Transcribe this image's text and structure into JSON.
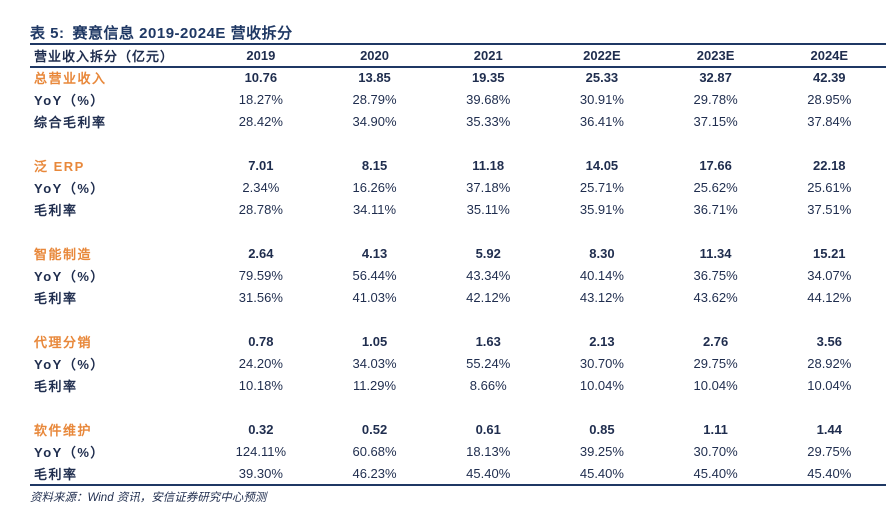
{
  "title": {
    "label": "表 5:",
    "text": "赛意信息 2019-2024E 营收拆分"
  },
  "header": [
    "营业收入拆分（亿元）",
    "2019",
    "2020",
    "2021",
    "2022E",
    "2023E",
    "2024E"
  ],
  "groups": [
    {
      "rows": [
        {
          "name": "总营业收入",
          "values": [
            "10.76",
            "13.85",
            "19.35",
            "25.33",
            "32.87",
            "42.39"
          ]
        },
        {
          "name": "YoY（%）",
          "values": [
            "18.27%",
            "28.79%",
            "39.68%",
            "30.91%",
            "29.78%",
            "28.95%"
          ]
        },
        {
          "name": "综合毛利率",
          "values": [
            "28.42%",
            "34.90%",
            "35.33%",
            "36.41%",
            "37.15%",
            "37.84%"
          ]
        }
      ]
    },
    {
      "rows": [
        {
          "name": "泛 ERP",
          "values": [
            "7.01",
            "8.15",
            "11.18",
            "14.05",
            "17.66",
            "22.18"
          ]
        },
        {
          "name": "YoY（%）",
          "values": [
            "2.34%",
            "16.26%",
            "37.18%",
            "25.71%",
            "25.62%",
            "25.61%"
          ]
        },
        {
          "name": "毛利率",
          "values": [
            "28.78%",
            "34.11%",
            "35.11%",
            "35.91%",
            "36.71%",
            "37.51%"
          ]
        }
      ]
    },
    {
      "rows": [
        {
          "name": "智能制造",
          "values": [
            "2.64",
            "4.13",
            "5.92",
            "8.30",
            "11.34",
            "15.21"
          ]
        },
        {
          "name": "YoY（%）",
          "values": [
            "79.59%",
            "56.44%",
            "43.34%",
            "40.14%",
            "36.75%",
            "34.07%"
          ]
        },
        {
          "name": "毛利率",
          "values": [
            "31.56%",
            "41.03%",
            "42.12%",
            "43.12%",
            "43.62%",
            "44.12%"
          ]
        }
      ]
    },
    {
      "rows": [
        {
          "name": "代理分销",
          "values": [
            "0.78",
            "1.05",
            "1.63",
            "2.13",
            "2.76",
            "3.56"
          ]
        },
        {
          "name": "YoY（%）",
          "values": [
            "24.20%",
            "34.03%",
            "55.24%",
            "30.70%",
            "29.75%",
            "28.92%"
          ]
        },
        {
          "name": "毛利率",
          "values": [
            "10.18%",
            "11.29%",
            "8.66%",
            "10.04%",
            "10.04%",
            "10.04%"
          ]
        }
      ]
    },
    {
      "rows": [
        {
          "name": "软件维护",
          "values": [
            "0.32",
            "0.52",
            "0.61",
            "0.85",
            "1.11",
            "1.44"
          ]
        },
        {
          "name": "YoY（%）",
          "values": [
            "124.11%",
            "60.68%",
            "18.13%",
            "39.25%",
            "30.70%",
            "29.75%"
          ]
        },
        {
          "name": "毛利率",
          "values": [
            "39.30%",
            "46.23%",
            "45.40%",
            "45.40%",
            "45.40%",
            "45.40%"
          ]
        }
      ]
    }
  ],
  "source": "资料来源：Wind 资讯，安信证券研究中心预测",
  "colors": {
    "navy": "#1f3864",
    "orange": "#e8883b",
    "text": "#1f2d4e"
  }
}
